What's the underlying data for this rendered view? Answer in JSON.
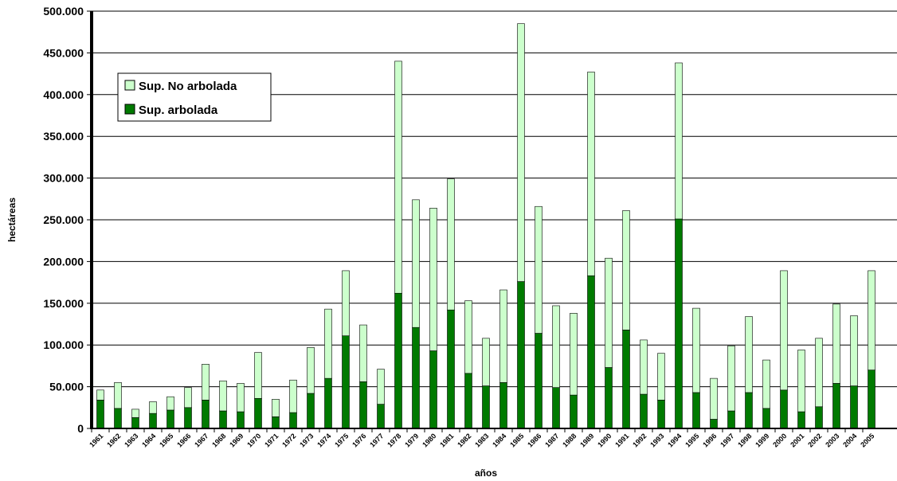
{
  "chart_data": {
    "type": "bar",
    "stacked": true,
    "title": "",
    "xlabel": "años",
    "ylabel": "hectáreas",
    "ylim": [
      0,
      500000
    ],
    "yticks": [
      0,
      50000,
      100000,
      150000,
      200000,
      250000,
      300000,
      350000,
      400000,
      450000,
      500000
    ],
    "ytick_labels": [
      "0",
      "50.000",
      "100.000",
      "150.000",
      "200.000",
      "250.000",
      "300.000",
      "350.000",
      "400.000",
      "450.000",
      "500.000"
    ],
    "grid": true,
    "legend_position": "top-left",
    "categories": [
      "1961",
      "1962",
      "1963",
      "1964",
      "1965",
      "1966",
      "1967",
      "1968",
      "1969",
      "1970",
      "1971",
      "1972",
      "1973",
      "1974",
      "1975",
      "1976",
      "1977",
      "1978",
      "1979",
      "1980",
      "1981",
      "1982",
      "1983",
      "1984",
      "1985",
      "1986",
      "1987",
      "1988",
      "1989",
      "1990",
      "1991",
      "1992",
      "1993",
      "1994",
      "1995",
      "1996",
      "1997",
      "1998",
      "1999",
      "2000",
      "2001",
      "2002",
      "2003",
      "2004",
      "2005"
    ],
    "series": [
      {
        "name": "Sup. arbolada",
        "color": "#007a00",
        "values": [
          34000,
          24000,
          13000,
          18000,
          22000,
          25000,
          34000,
          21000,
          20000,
          36000,
          14000,
          19000,
          42000,
          60000,
          111000,
          56000,
          29000,
          162000,
          121000,
          93000,
          142000,
          66000,
          51000,
          55000,
          176000,
          114000,
          49000,
          40000,
          183000,
          73000,
          118000,
          41000,
          34000,
          251000,
          43000,
          11000,
          21000,
          43000,
          24000,
          46000,
          20000,
          26000,
          54000,
          51000,
          70000
        ]
      },
      {
        "name": "Sup. No arbolada",
        "color": "#ccffcc",
        "values": [
          12000,
          31000,
          10000,
          14000,
          16000,
          24000,
          43000,
          36000,
          34000,
          55000,
          21000,
          39000,
          55000,
          83000,
          78000,
          68000,
          42000,
          278000,
          153000,
          171000,
          157000,
          87000,
          57000,
          111000,
          309000,
          152000,
          98000,
          98000,
          244000,
          131000,
          143000,
          65000,
          56000,
          187000,
          101000,
          49000,
          78000,
          91000,
          58000,
          143000,
          74000,
          82000,
          95000,
          84000,
          119000
        ]
      }
    ]
  }
}
